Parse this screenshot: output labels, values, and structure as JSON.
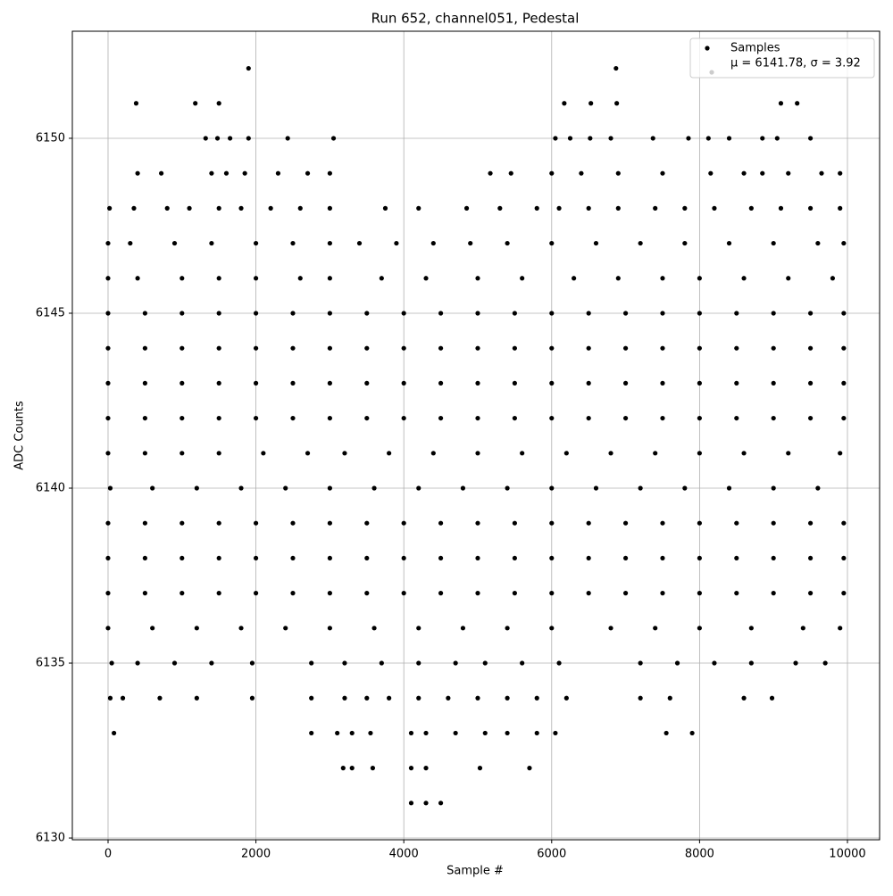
{
  "chart_data": {
    "type": "scatter",
    "title": "Run 652, channel051, Pedestal",
    "x_label": "Sample #",
    "y_label": "ADC Counts",
    "xlim": [
      -483,
      10435
    ],
    "ylim": [
      6129.95,
      6153.06
    ],
    "xticks": [
      0,
      2000,
      4000,
      6000,
      8000,
      10000
    ],
    "yticks": [
      6130,
      6135,
      6140,
      6145,
      6150
    ],
    "grid": true,
    "legend": "upper right",
    "series": [
      {
        "name": "Samples",
        "color": "#000000",
        "x": [
          1900,
          6870,
          380,
          1180,
          1500,
          6170,
          6530,
          6880,
          9100,
          9320,
          1320,
          1480,
          1650,
          1900,
          2430,
          3050,
          6050,
          6250,
          6520,
          6800,
          7370,
          7850,
          8120,
          8400,
          8850,
          9050,
          9500,
          400,
          720,
          1400,
          1600,
          1850,
          2300,
          2700,
          3000,
          5170,
          5450,
          6000,
          6400,
          6900,
          7500,
          8150,
          8600,
          8850,
          9200,
          9650,
          9900,
          20,
          350,
          800,
          1100,
          1500,
          1800,
          2200,
          2600,
          3000,
          3750,
          4200,
          4850,
          5300,
          5800,
          6100,
          6500,
          6900,
          7400,
          7800,
          8200,
          8700,
          9100,
          9500,
          9900,
          0,
          300,
          900,
          1400,
          2000,
          2500,
          3000,
          3400,
          3900,
          4400,
          4900,
          5400,
          6000,
          6600,
          7200,
          7800,
          8400,
          9000,
          9600,
          9950,
          0,
          400,
          1000,
          1500,
          2000,
          2600,
          3000,
          3700,
          4300,
          5000,
          5600,
          6300,
          6900,
          7500,
          8000,
          8600,
          9200,
          9800,
          0,
          500,
          1000,
          1500,
          2000,
          2500,
          3000,
          3500,
          4000,
          4500,
          5000,
          5500,
          6000,
          6500,
          7000,
          7500,
          8000,
          8500,
          9000,
          9500,
          9950,
          0,
          500,
          1000,
          1500,
          2000,
          2500,
          3000,
          3500,
          4000,
          4500,
          5000,
          5500,
          6000,
          6500,
          7000,
          7500,
          8000,
          8500,
          9000,
          9500,
          9950,
          0,
          500,
          1000,
          1500,
          2000,
          2500,
          3000,
          3500,
          4000,
          4500,
          5000,
          5500,
          6000,
          6500,
          7000,
          7500,
          8000,
          8500,
          9000,
          9500,
          9950,
          0,
          500,
          1000,
          1500,
          2000,
          2500,
          3000,
          3500,
          4000,
          4500,
          5000,
          5500,
          6000,
          6500,
          7000,
          7500,
          8000,
          8500,
          9000,
          9500,
          9950,
          0,
          500,
          1000,
          1500,
          2100,
          2700,
          3200,
          3800,
          4400,
          5000,
          5600,
          6200,
          6800,
          7400,
          8000,
          8600,
          9200,
          9900,
          30,
          600,
          1200,
          1800,
          2400,
          3000,
          3600,
          4200,
          4800,
          5400,
          6000,
          6600,
          7200,
          7800,
          8400,
          9000,
          9600,
          0,
          500,
          1000,
          1500,
          2000,
          2500,
          3000,
          3500,
          4000,
          4500,
          5000,
          5500,
          6000,
          6500,
          7000,
          7500,
          8000,
          8500,
          9000,
          9500,
          9950,
          0,
          500,
          1000,
          1500,
          2000,
          2500,
          3000,
          3500,
          4000,
          4500,
          5000,
          5500,
          6000,
          6500,
          7000,
          7500,
          8000,
          8500,
          9000,
          9500,
          9950,
          0,
          500,
          1000,
          1500,
          2000,
          2500,
          3000,
          3500,
          4000,
          4500,
          5000,
          5500,
          6000,
          6500,
          7000,
          7500,
          8000,
          8500,
          9000,
          9500,
          9950,
          0,
          600,
          1200,
          1800,
          2400,
          3000,
          3600,
          4200,
          4800,
          5400,
          6000,
          6800,
          7400,
          8000,
          8700,
          9400,
          9900,
          50,
          400,
          900,
          1400,
          1950,
          2750,
          3200,
          3700,
          4200,
          4700,
          5100,
          5600,
          6100,
          7200,
          7700,
          8200,
          8700,
          9300,
          9700,
          30,
          200,
          700,
          1200,
          1950,
          2750,
          3200,
          3500,
          3800,
          4200,
          4600,
          5000,
          5400,
          5800,
          6200,
          7200,
          7600,
          8600,
          8980,
          80,
          2750,
          3100,
          3300,
          3550,
          4100,
          4300,
          4700,
          5100,
          5400,
          5800,
          6050,
          7550,
          7900,
          3180,
          3300,
          3580,
          4100,
          4300,
          5030,
          5700,
          4100,
          4300,
          4500
        ],
        "y": [
          6152,
          6152,
          6151,
          6151,
          6151,
          6151,
          6151,
          6151,
          6151,
          6151,
          6150,
          6150,
          6150,
          6150,
          6150,
          6150,
          6150,
          6150,
          6150,
          6150,
          6150,
          6150,
          6150,
          6150,
          6150,
          6150,
          6150,
          6149,
          6149,
          6149,
          6149,
          6149,
          6149,
          6149,
          6149,
          6149,
          6149,
          6149,
          6149,
          6149,
          6149,
          6149,
          6149,
          6149,
          6149,
          6149,
          6149,
          6148,
          6148,
          6148,
          6148,
          6148,
          6148,
          6148,
          6148,
          6148,
          6148,
          6148,
          6148,
          6148,
          6148,
          6148,
          6148,
          6148,
          6148,
          6148,
          6148,
          6148,
          6148,
          6148,
          6148,
          6147,
          6147,
          6147,
          6147,
          6147,
          6147,
          6147,
          6147,
          6147,
          6147,
          6147,
          6147,
          6147,
          6147,
          6147,
          6147,
          6147,
          6147,
          6147,
          6147,
          6146,
          6146,
          6146,
          6146,
          6146,
          6146,
          6146,
          6146,
          6146,
          6146,
          6146,
          6146,
          6146,
          6146,
          6146,
          6146,
          6146,
          6146,
          6145,
          6145,
          6145,
          6145,
          6145,
          6145,
          6145,
          6145,
          6145,
          6145,
          6145,
          6145,
          6145,
          6145,
          6145,
          6145,
          6145,
          6145,
          6145,
          6145,
          6145,
          6144,
          6144,
          6144,
          6144,
          6144,
          6144,
          6144,
          6144,
          6144,
          6144,
          6144,
          6144,
          6144,
          6144,
          6144,
          6144,
          6144,
          6144,
          6144,
          6144,
          6144,
          6143,
          6143,
          6143,
          6143,
          6143,
          6143,
          6143,
          6143,
          6143,
          6143,
          6143,
          6143,
          6143,
          6143,
          6143,
          6143,
          6143,
          6143,
          6143,
          6143,
          6143,
          6142,
          6142,
          6142,
          6142,
          6142,
          6142,
          6142,
          6142,
          6142,
          6142,
          6142,
          6142,
          6142,
          6142,
          6142,
          6142,
          6142,
          6142,
          6142,
          6142,
          6142,
          6141,
          6141,
          6141,
          6141,
          6141,
          6141,
          6141,
          6141,
          6141,
          6141,
          6141,
          6141,
          6141,
          6141,
          6141,
          6141,
          6141,
          6141,
          6140,
          6140,
          6140,
          6140,
          6140,
          6140,
          6140,
          6140,
          6140,
          6140,
          6140,
          6140,
          6140,
          6140,
          6140,
          6140,
          6140,
          6139,
          6139,
          6139,
          6139,
          6139,
          6139,
          6139,
          6139,
          6139,
          6139,
          6139,
          6139,
          6139,
          6139,
          6139,
          6139,
          6139,
          6139,
          6139,
          6139,
          6139,
          6138,
          6138,
          6138,
          6138,
          6138,
          6138,
          6138,
          6138,
          6138,
          6138,
          6138,
          6138,
          6138,
          6138,
          6138,
          6138,
          6138,
          6138,
          6138,
          6138,
          6138,
          6137,
          6137,
          6137,
          6137,
          6137,
          6137,
          6137,
          6137,
          6137,
          6137,
          6137,
          6137,
          6137,
          6137,
          6137,
          6137,
          6137,
          6137,
          6137,
          6137,
          6137,
          6136,
          6136,
          6136,
          6136,
          6136,
          6136,
          6136,
          6136,
          6136,
          6136,
          6136,
          6136,
          6136,
          6136,
          6136,
          6136,
          6136,
          6135,
          6135,
          6135,
          6135,
          6135,
          6135,
          6135,
          6135,
          6135,
          6135,
          6135,
          6135,
          6135,
          6135,
          6135,
          6135,
          6135,
          6135,
          6135,
          6134,
          6134,
          6134,
          6134,
          6134,
          6134,
          6134,
          6134,
          6134,
          6134,
          6134,
          6134,
          6134,
          6134,
          6134,
          6134,
          6134,
          6134,
          6134,
          6133,
          6133,
          6133,
          6133,
          6133,
          6133,
          6133,
          6133,
          6133,
          6133,
          6133,
          6133,
          6133,
          6133,
          6132,
          6132,
          6132,
          6132,
          6132,
          6132,
          6132,
          6131,
          6131,
          6131
        ]
      },
      {
        "name": "μ = 6141.78, σ = 3.92",
        "color": "#cccccc",
        "x": [],
        "y": []
      }
    ]
  }
}
